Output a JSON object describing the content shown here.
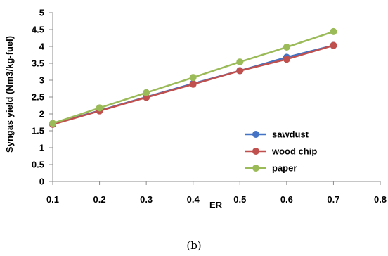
{
  "chart_data": {
    "type": "line",
    "xlabel": "ER",
    "ylabel": "Syngas yield (Nm3/kg-fuel)",
    "xlim": [
      0.1,
      0.8
    ],
    "ylim": [
      0,
      5
    ],
    "x_ticks": [
      "0.1",
      "0.2",
      "0.3",
      "0.4",
      "0.5",
      "0.6",
      "0.7",
      "0.8"
    ],
    "y_ticks": [
      "0",
      "0.5",
      "1",
      "1.5",
      "2",
      "2.5",
      "3",
      "3.5",
      "4",
      "4.5",
      "5"
    ],
    "grid": false,
    "legend_position": "bottom-right",
    "x": [
      0.1,
      0.2,
      0.3,
      0.4,
      0.5,
      0.6,
      0.7
    ],
    "series": [
      {
        "name": "sawdust",
        "color": "#4472C4",
        "values": [
          1.7,
          2.1,
          2.5,
          2.9,
          3.28,
          3.68,
          4.03
        ]
      },
      {
        "name": "wood chip",
        "color": "#C0504D",
        "values": [
          1.69,
          2.09,
          2.49,
          2.88,
          3.28,
          3.62,
          4.03
        ]
      },
      {
        "name": "paper",
        "color": "#9BBB59",
        "values": [
          1.72,
          2.18,
          2.63,
          3.08,
          3.54,
          3.98,
          4.44
        ]
      }
    ]
  },
  "caption": "(b)"
}
